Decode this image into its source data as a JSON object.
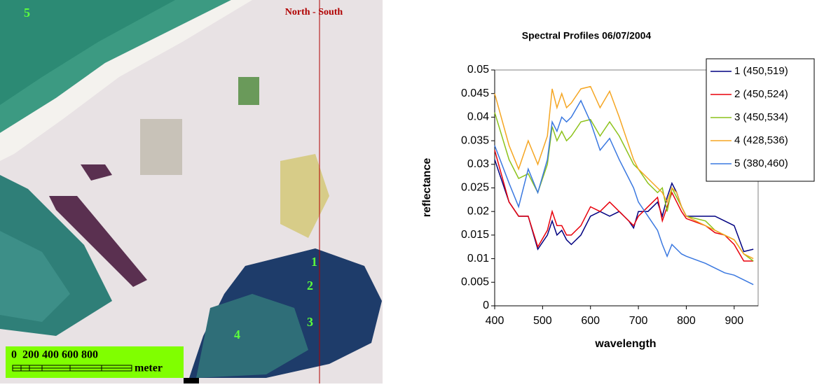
{
  "image": {
    "line_label": "North - South",
    "points": [
      "1",
      "2",
      "3",
      "4",
      "5"
    ],
    "scale": "0  200 400 600 800",
    "scale_unit": "meter"
  },
  "chart_data": {
    "type": "line",
    "title": "Spectral Profiles 06/07/2004",
    "x_label": "wavelength",
    "y_label": "reflectance",
    "x": [
      400,
      430,
      450,
      470,
      490,
      510,
      520,
      530,
      540,
      550,
      560,
      580,
      600,
      620,
      640,
      660,
      680,
      690,
      700,
      720,
      740,
      750,
      760,
      770,
      780,
      790,
      800,
      840,
      860,
      880,
      900,
      920,
      940
    ],
    "xlim": [
      400,
      950
    ],
    "xticks": [
      400,
      500,
      600,
      700,
      800,
      900
    ],
    "ylim": [
      0,
      0.05
    ],
    "yticks": [
      0,
      0.005,
      0.01,
      0.015,
      0.02,
      0.025,
      0.03,
      0.035,
      0.04,
      0.045,
      0.05
    ],
    "legend": "top-right",
    "series": [
      {
        "name": "1 (450,519)",
        "color": "#000080",
        "values": [
          0.031,
          0.022,
          0.019,
          0.019,
          0.012,
          0.015,
          0.018,
          0.015,
          0.016,
          0.014,
          0.013,
          0.015,
          0.019,
          0.02,
          0.019,
          0.02,
          0.018,
          0.0165,
          0.02,
          0.02,
          0.022,
          0.019,
          0.023,
          0.026,
          0.024,
          0.021,
          0.019,
          0.019,
          0.019,
          0.018,
          0.017,
          0.0115,
          0.012
        ]
      },
      {
        "name": "2 (450,524)",
        "color": "#e8000b",
        "values": [
          0.033,
          0.022,
          0.019,
          0.019,
          0.0125,
          0.016,
          0.02,
          0.017,
          0.017,
          0.015,
          0.015,
          0.017,
          0.021,
          0.02,
          0.022,
          0.02,
          0.018,
          0.017,
          0.019,
          0.021,
          0.023,
          0.018,
          0.021,
          0.024,
          0.022,
          0.02,
          0.0185,
          0.017,
          0.0155,
          0.015,
          0.013,
          0.0095,
          0.0095
        ]
      },
      {
        "name": "3 (450,534)",
        "color": "#8cc21a",
        "values": [
          0.041,
          0.031,
          0.027,
          0.028,
          0.024,
          0.03,
          0.038,
          0.035,
          0.037,
          0.035,
          0.036,
          0.039,
          0.0395,
          0.036,
          0.039,
          0.036,
          0.032,
          0.03,
          0.029,
          0.026,
          0.024,
          0.025,
          0.02,
          0.025,
          0.023,
          0.021,
          0.019,
          0.018,
          0.016,
          0.015,
          0.014,
          0.011,
          0.0095
        ]
      },
      {
        "name": "4 (428,536)",
        "color": "#f5a623",
        "values": [
          0.045,
          0.034,
          0.029,
          0.035,
          0.03,
          0.036,
          0.046,
          0.042,
          0.045,
          0.042,
          0.043,
          0.046,
          0.0465,
          0.042,
          0.0455,
          0.04,
          0.034,
          0.031,
          0.029,
          0.027,
          0.025,
          0.024,
          0.022,
          0.025,
          0.024,
          0.021,
          0.019,
          0.017,
          0.016,
          0.015,
          0.014,
          0.011,
          0.01
        ]
      },
      {
        "name": "5 (380,460)",
        "color": "#3a78e0",
        "values": [
          0.034,
          0.026,
          0.021,
          0.029,
          0.024,
          0.031,
          0.039,
          0.037,
          0.04,
          0.039,
          0.04,
          0.0435,
          0.039,
          0.033,
          0.0355,
          0.031,
          0.027,
          0.025,
          0.022,
          0.019,
          0.016,
          0.013,
          0.0105,
          0.013,
          0.012,
          0.011,
          0.0105,
          0.009,
          0.008,
          0.007,
          0.0065,
          0.0055,
          0.0045
        ]
      }
    ]
  }
}
